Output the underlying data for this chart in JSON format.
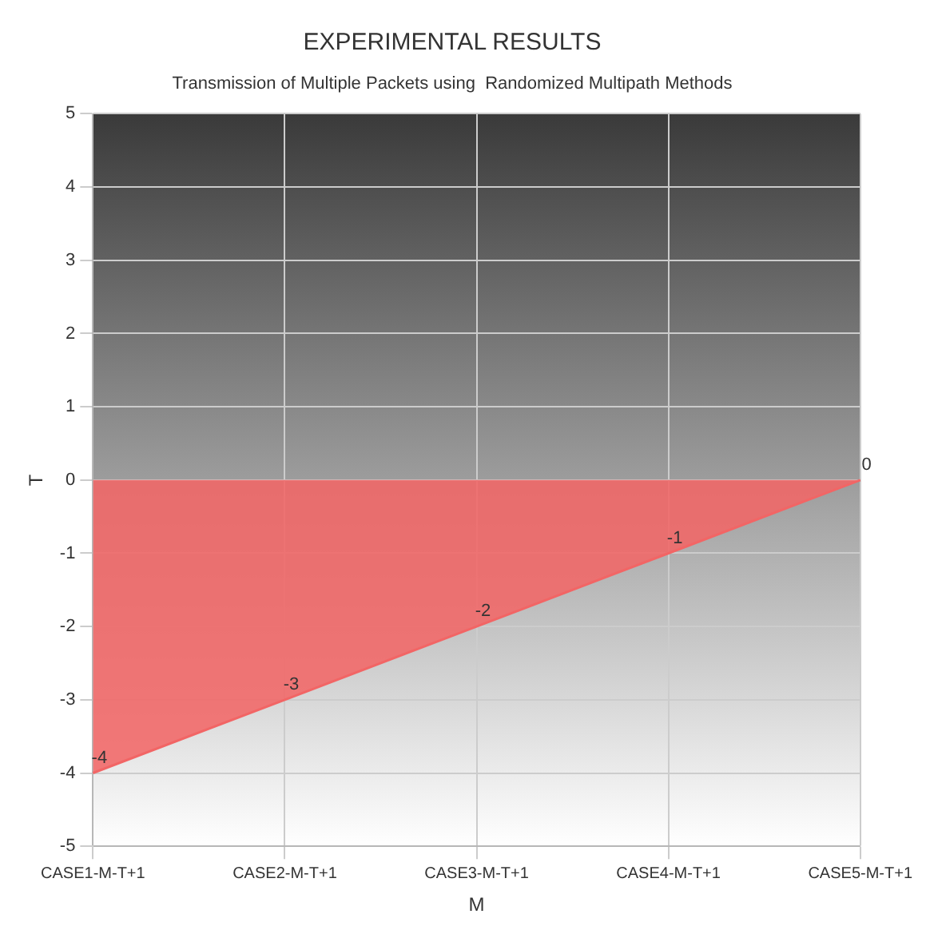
{
  "chart_data": {
    "type": "area",
    "title": "EXPERIMENTAL RESULTS",
    "subtitle": "Transmission of Multiple Packets using  Randomized Multipath Methods",
    "xlabel": "M",
    "ylabel": "T",
    "categories": [
      "CASE1-M-T+1",
      "CASE2-M-T+1",
      "CASE3-M-T+1",
      "CASE4-M-T+1",
      "CASE5-M-T+1"
    ],
    "series": [
      {
        "color": "#f26565",
        "values": [
          -4,
          -3,
          -2,
          -1,
          0
        ]
      }
    ],
    "ylim": [
      -5,
      5
    ],
    "yticks": [
      -5,
      -4,
      -3,
      -2,
      -1,
      0,
      1,
      2,
      3,
      4,
      5
    ],
    "grid": true,
    "data_labels": true,
    "legend": false
  }
}
